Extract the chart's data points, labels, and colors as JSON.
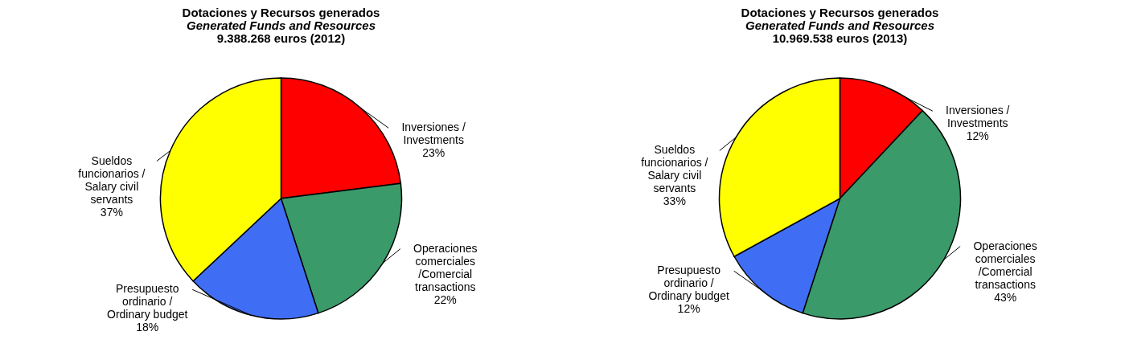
{
  "chart_data": [
    {
      "type": "pie",
      "title": "Dotaciones y Recursos generados",
      "subtitle": "Generated Funds and Resources",
      "annotations": [
        "9.388.268 euros (2012)"
      ],
      "categories": [
        "Inversiones /\nInvestments",
        "Operaciones\ncomerciales\n/Comercial\ntransactions",
        "Presupuesto\nordinario  /\nOrdinary budget",
        "Sueldos\nfuncionarios  /\nSalary civil\nservants"
      ],
      "values": [
        23,
        22,
        18,
        37
      ],
      "colors": [
        "#ff0000",
        "#3a9a6a",
        "#3f6ef5",
        "#ffff00"
      ],
      "value_labels": [
        "23%",
        "22%",
        "18%",
        "37%"
      ]
    },
    {
      "type": "pie",
      "title": "Dotaciones y Recursos generados",
      "subtitle": "Generated Funds and Resources",
      "annotations": [
        "10.969.538 euros (2013)"
      ],
      "categories": [
        "Inversiones /\nInvestments",
        "Operaciones\ncomerciales\n/Comercial\ntransactions",
        "Presupuesto\nordinario  /\nOrdinary budget",
        "Sueldos\nfuncionarios  /\nSalary civil\nservants"
      ],
      "values": [
        12,
        43,
        12,
        33
      ],
      "colors": [
        "#ff0000",
        "#3a9a6a",
        "#3f6ef5",
        "#ffff00"
      ],
      "value_labels": [
        "12%",
        "43%",
        "12%",
        "33%"
      ]
    }
  ]
}
